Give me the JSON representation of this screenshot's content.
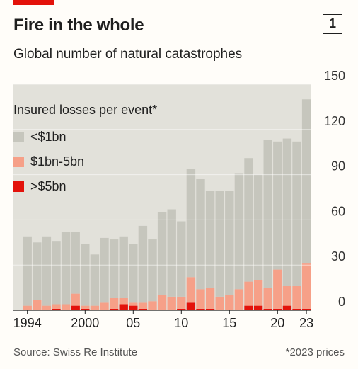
{
  "header": {
    "title": "Fire in the whole",
    "badge": "1",
    "subtitle": "Global number of natural catastrophes"
  },
  "legend": {
    "title": "Insured losses per event*",
    "items": [
      {
        "label": "<$1bn",
        "color": "#c6c6bd"
      },
      {
        "label": "$1bn-5bn",
        "color": "#f6a088"
      },
      {
        "label": ">$5bn",
        "color": "#e3120b"
      }
    ]
  },
  "footer": {
    "source": "Source: Swiss Re Institute",
    "note": "*2023 prices"
  },
  "chart_data": {
    "type": "bar",
    "stacked": true,
    "categories": [
      1994,
      1995,
      1996,
      1997,
      1998,
      1999,
      2000,
      2001,
      2002,
      2003,
      2004,
      2005,
      2006,
      2007,
      2008,
      2009,
      2010,
      2011,
      2012,
      2013,
      2014,
      2015,
      2016,
      2017,
      2018,
      2019,
      2020,
      2021,
      2022,
      2023
    ],
    "x_tick_labels": [
      {
        "index": 0,
        "label": "1994"
      },
      {
        "index": 6,
        "label": "2000"
      },
      {
        "index": 11,
        "label": "05"
      },
      {
        "index": 16,
        "label": "10"
      },
      {
        "index": 21,
        "label": "15"
      },
      {
        "index": 26,
        "label": "20"
      },
      {
        "index": 29,
        "label": "23"
      }
    ],
    "y_ticks": [
      0,
      30,
      60,
      90,
      120,
      150
    ],
    "ylim": [
      0,
      150
    ],
    "series": [
      {
        "name": ">$5bn",
        "color": "#e3120b",
        "values": [
          0,
          0,
          0,
          1,
          0,
          3,
          1,
          0,
          0,
          1,
          4,
          3,
          1,
          0,
          0,
          0,
          1,
          5,
          1,
          1,
          0,
          0,
          0,
          3,
          3,
          1,
          1,
          3,
          1,
          1
        ]
      },
      {
        "name": "$1bn-5bn",
        "color": "#f6a088",
        "values": [
          3,
          7,
          3,
          3,
          4,
          8,
          2,
          3,
          5,
          7,
          4,
          2,
          4,
          6,
          10,
          9,
          8,
          17,
          13,
          14,
          9,
          10,
          14,
          16,
          17,
          14,
          26,
          13,
          15,
          30
        ]
      },
      {
        "name": "<$1bn",
        "color": "#c6c6bd",
        "values": [
          46,
          38,
          46,
          42,
          48,
          41,
          41,
          34,
          43,
          39,
          41,
          39,
          51,
          41,
          55,
          58,
          50,
          72,
          73,
          64,
          70,
          69,
          77,
          82,
          70,
          98,
          85,
          98,
          96,
          109
        ]
      }
    ]
  }
}
